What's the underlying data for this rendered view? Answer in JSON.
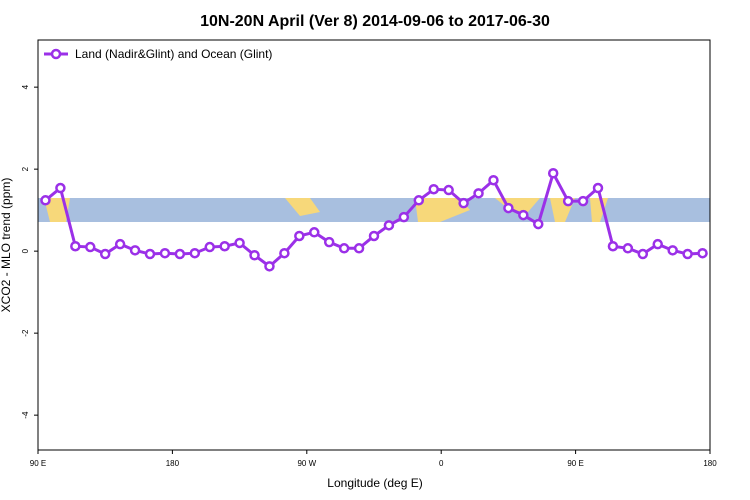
{
  "chart_data": {
    "type": "line",
    "title": "10N-20N April (Ver 8)   2014-09-06 to 2017-06-30",
    "x_label": "Longitude (deg E)",
    "y_label": "XCO2 - MLO trend (ppm)",
    "xlim": [
      90,
      540
    ],
    "ylim": [
      -4.85,
      5.15
    ],
    "xticks": [
      {
        "value": 90,
        "label": "90 E"
      },
      {
        "value": 180,
        "label": "180"
      },
      {
        "value": 270,
        "label": "90 W"
      },
      {
        "value": 360,
        "label": "0"
      },
      {
        "value": 450,
        "label": "90 E"
      },
      {
        "value": 540,
        "label": "180"
      }
    ],
    "yticks": [
      -4,
      -2,
      0,
      2,
      4
    ],
    "legend": "top-left",
    "x": [
      95,
      105,
      115,
      125,
      135,
      145,
      155,
      165,
      175,
      185,
      195,
      205,
      215,
      225,
      235,
      245,
      255,
      265,
      275,
      285,
      295,
      305,
      315,
      325,
      335,
      345,
      355,
      365,
      375,
      385,
      395,
      405,
      415,
      425,
      435,
      445,
      455,
      465,
      475,
      485,
      495,
      505,
      515,
      525,
      535
    ],
    "series": [
      {
        "name": "Land (Nadir&Glint) and Ocean (Glint)",
        "color": "#9b30e8",
        "values": [
          1.24,
          1.54,
          0.12,
          0.1,
          -0.07,
          0.17,
          0.02,
          -0.07,
          -0.05,
          -0.07,
          -0.05,
          0.1,
          0.12,
          0.2,
          -0.1,
          -0.37,
          -0.05,
          0.37,
          0.46,
          0.22,
          0.07,
          0.07,
          0.37,
          0.63,
          0.83,
          1.24,
          1.51,
          1.49,
          1.17,
          1.41,
          1.73,
          1.05,
          0.88,
          0.66,
          1.9,
          1.22,
          1.22,
          1.54,
          0.12,
          0.07,
          -0.07,
          0.17,
          0.02,
          -0.07,
          -0.05
        ]
      }
    ]
  }
}
